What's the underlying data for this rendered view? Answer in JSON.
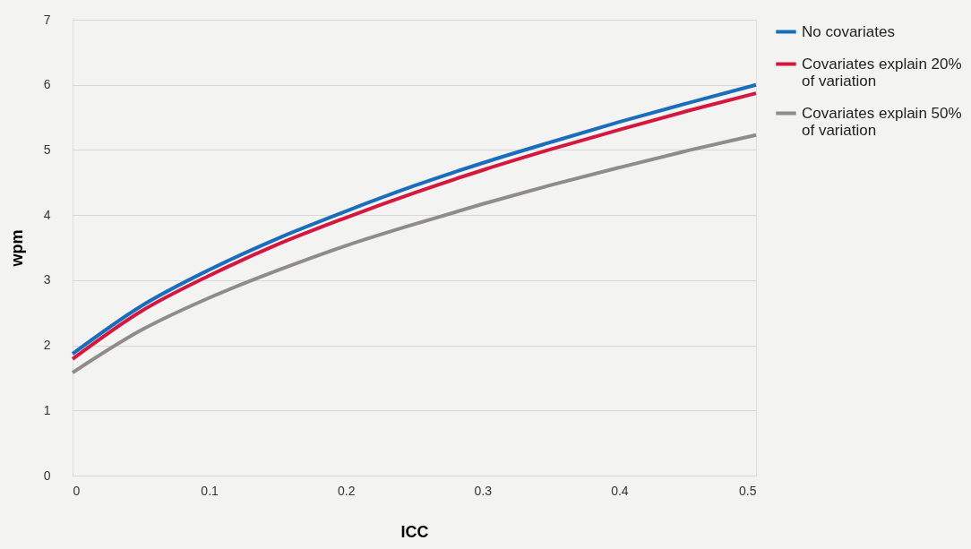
{
  "chart_data": {
    "type": "line",
    "xlabel": "ICC",
    "ylabel": "wpm",
    "x": [
      0,
      0.05,
      0.1,
      0.15,
      0.2,
      0.25,
      0.3,
      0.35,
      0.4,
      0.45,
      0.5
    ],
    "series": [
      {
        "name": "No covariates",
        "color": "#1a6dbd",
        "values": [
          1.87,
          2.6,
          3.16,
          3.64,
          4.06,
          4.45,
          4.8,
          5.12,
          5.43,
          5.72,
          6.0
        ]
      },
      {
        "name": "Covariates explain 20% of variation",
        "color": "#d5173f",
        "values": [
          1.79,
          2.52,
          3.07,
          3.55,
          3.96,
          4.34,
          4.69,
          5.01,
          5.31,
          5.6,
          5.87
        ]
      },
      {
        "name": "Covariates explain 50% of variation",
        "color": "#8f8c89",
        "values": [
          1.58,
          2.23,
          2.73,
          3.15,
          3.53,
          3.86,
          4.17,
          4.46,
          4.73,
          4.99,
          5.23
        ]
      }
    ],
    "xlim": [
      0,
      0.5
    ],
    "xticks": [
      0,
      0.1,
      0.2,
      0.3,
      0.4,
      0.5
    ],
    "ylim": [
      0,
      7
    ],
    "yticks": [
      0,
      1,
      2,
      3,
      4,
      5,
      6,
      7
    ],
    "grid": "y",
    "legend": "top right",
    "marker": "none",
    "line_style": "solid"
  }
}
